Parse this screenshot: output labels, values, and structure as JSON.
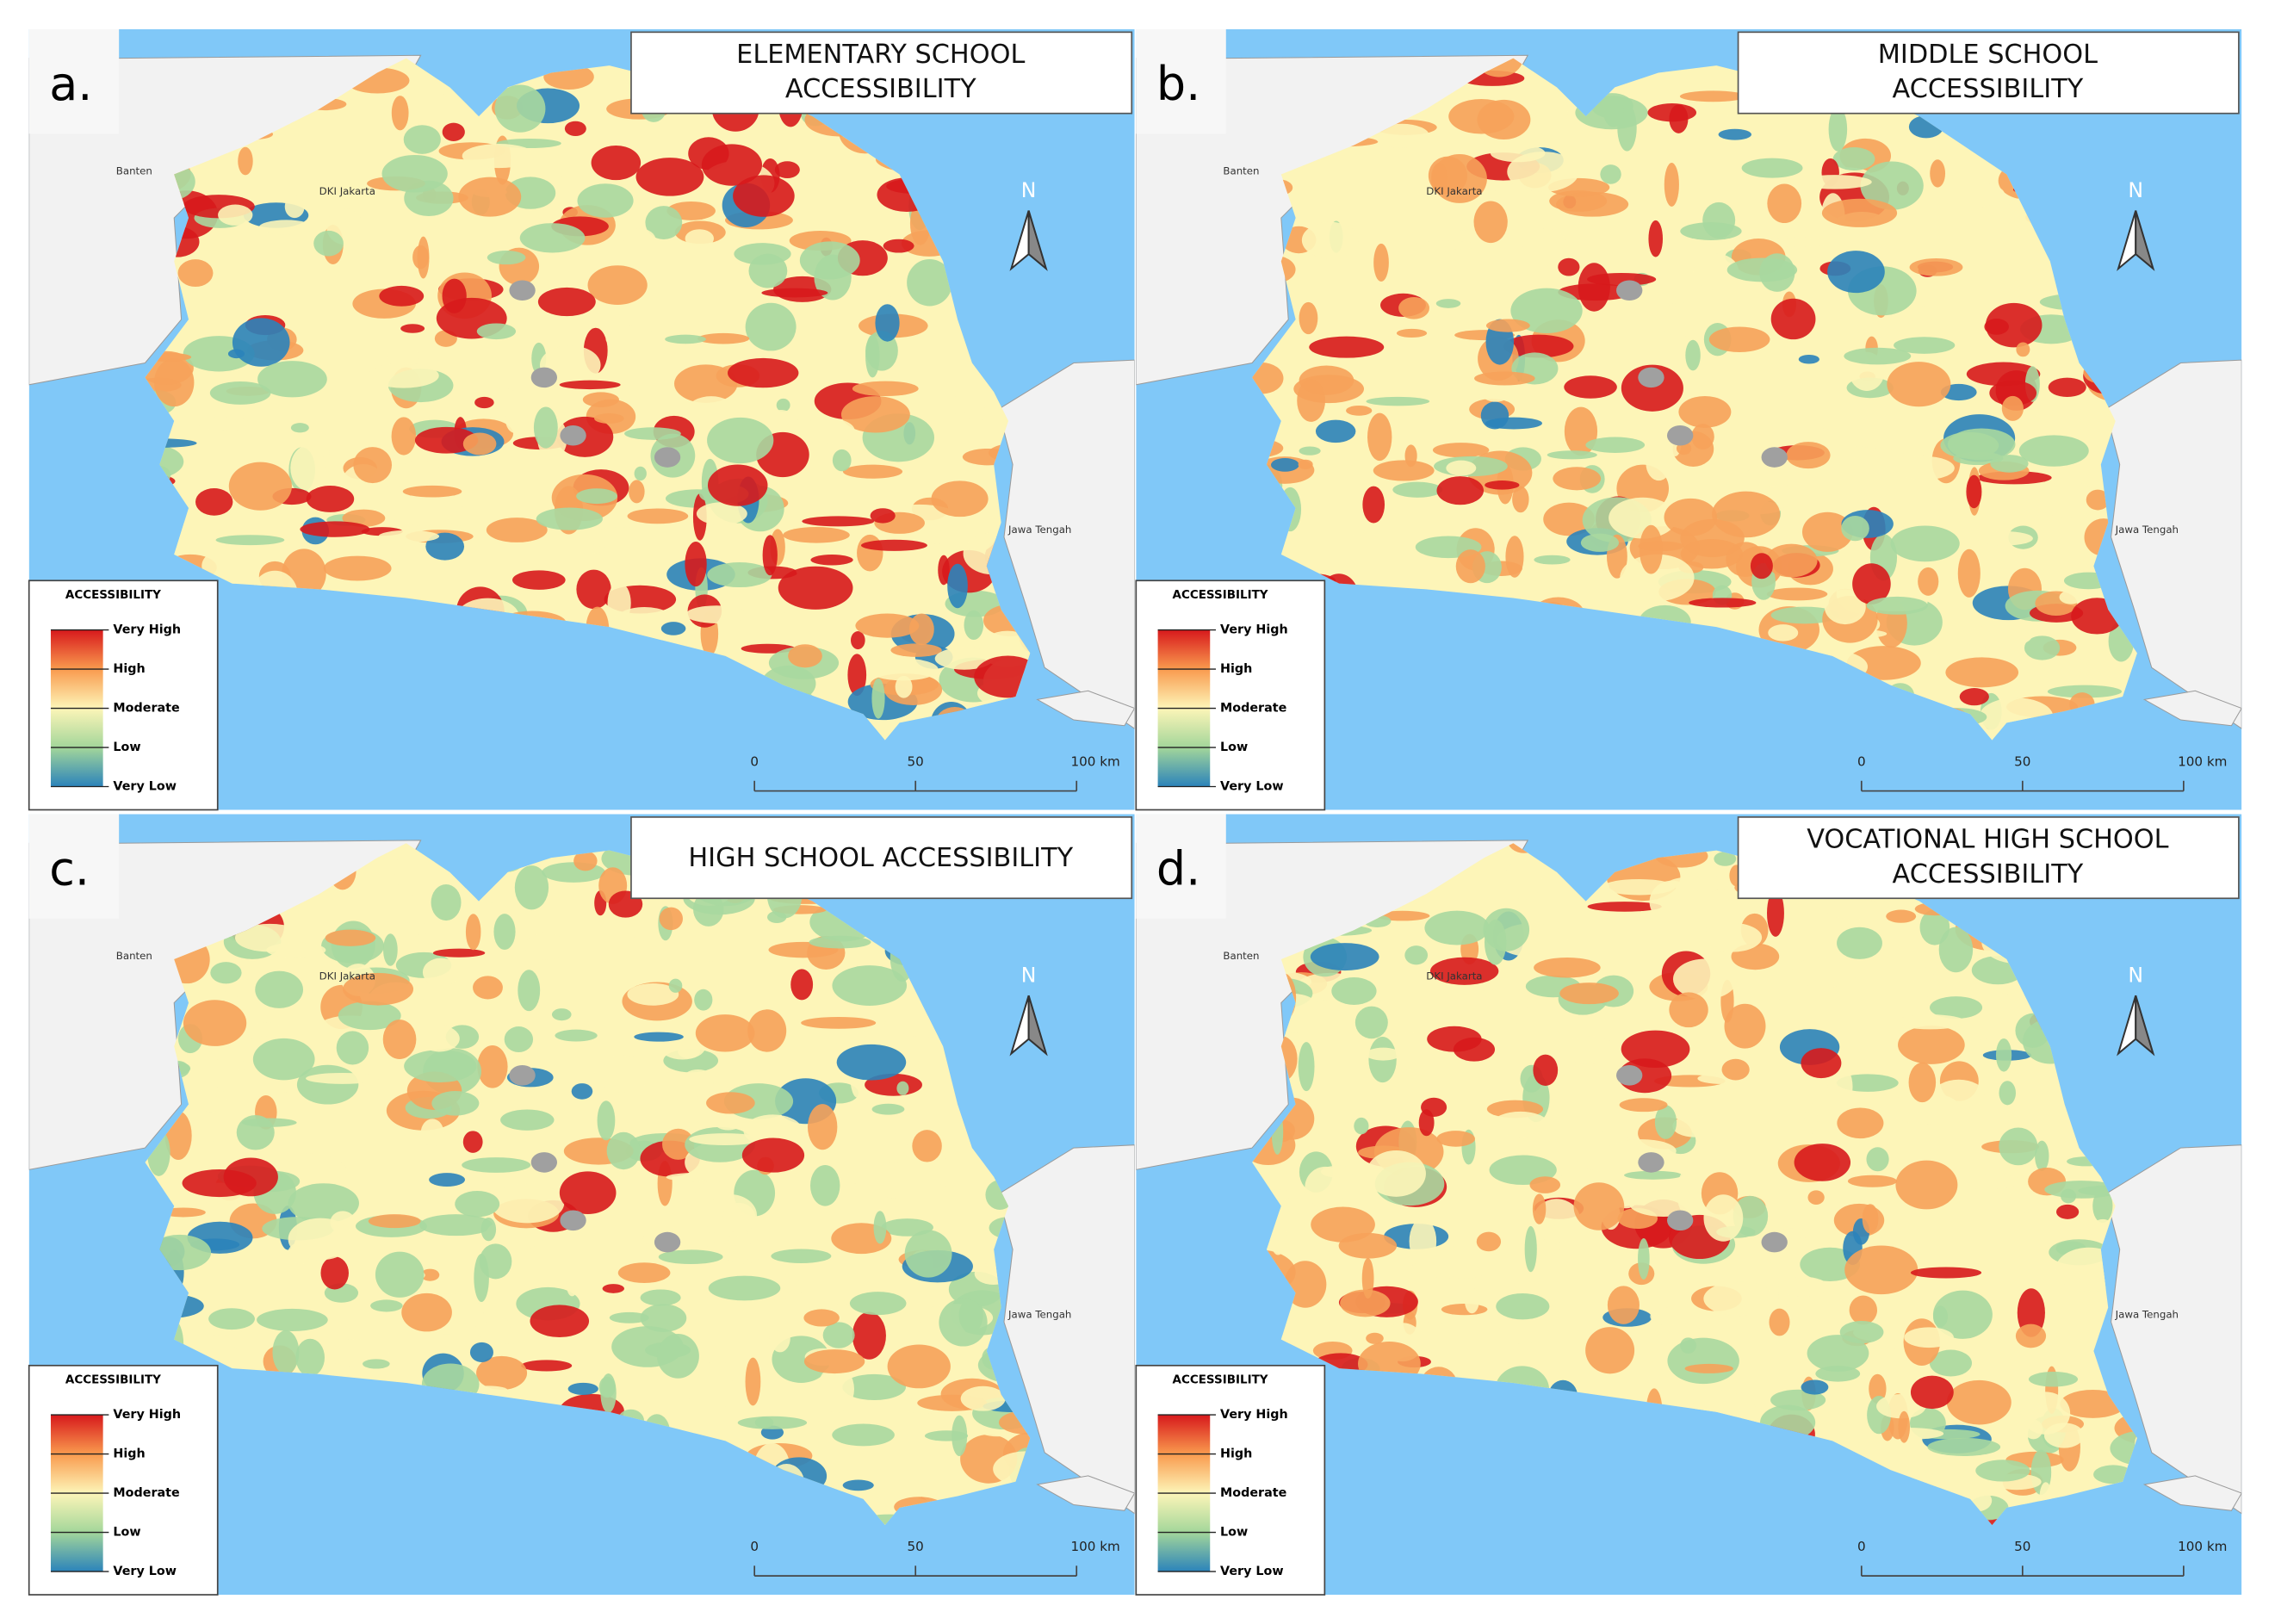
{
  "panels": [
    {
      "letter": "a.",
      "title_lines": [
        "ELEMENTARY SCHOOL",
        "ACCESSIBILITY"
      ]
    },
    {
      "letter": "b.",
      "title_lines": [
        "MIDDLE SCHOOL",
        "ACCESSIBILITY"
      ]
    },
    {
      "letter": "c.",
      "title_lines": [
        "HIGH SCHOOL ACCESSIBILITY"
      ]
    },
    {
      "letter": "d.",
      "title_lines": [
        "VOCATIONAL HIGH SCHOOL",
        "ACCESSIBILITY"
      ]
    }
  ],
  "places": {
    "west": "Banten",
    "capital": "DKI Jakarta",
    "east": "Jawa Tengah"
  },
  "north": "N",
  "legend": {
    "title": "ACCESSIBILITY",
    "labels": [
      "Very High",
      "High",
      "Moderate",
      "Low",
      "Very Low"
    ]
  },
  "scale_bar": [
    "0",
    "50",
    "100 km"
  ]
}
